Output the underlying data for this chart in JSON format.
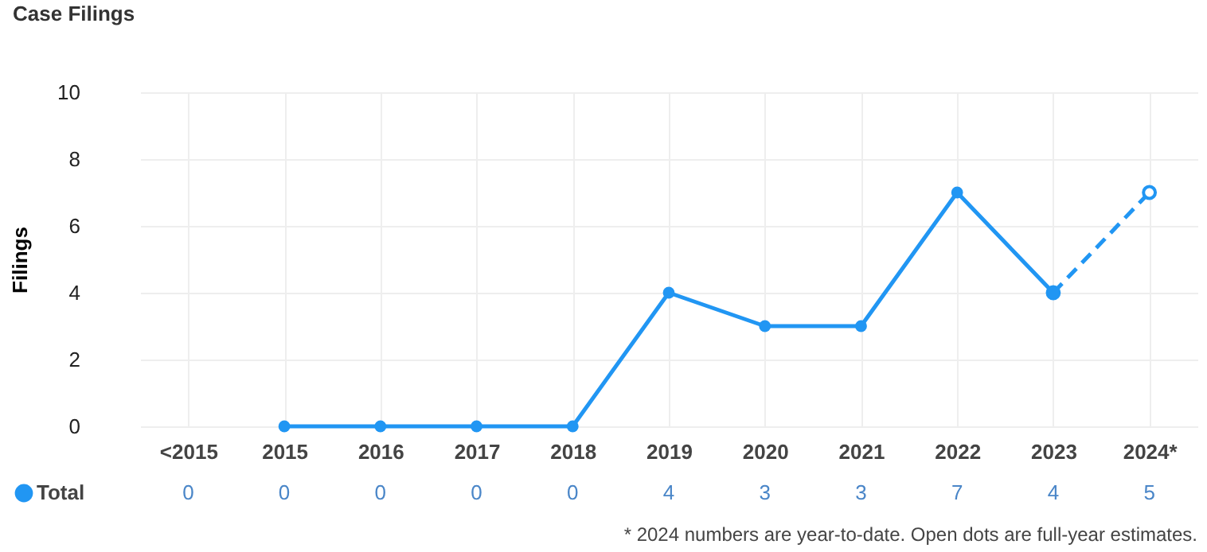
{
  "chart_data": {
    "type": "line",
    "title": "Case Filings",
    "ylabel": "Filings",
    "categories": [
      "<2015",
      "2015",
      "2016",
      "2017",
      "2018",
      "2019",
      "2020",
      "2021",
      "2022",
      "2023",
      "2024*"
    ],
    "series": [
      {
        "name": "Total",
        "color": "#2196f3",
        "values": [
          null,
          0,
          0,
          0,
          0,
          4,
          3,
          3,
          7,
          4,
          null
        ],
        "value_labels": [
          "0",
          "0",
          "0",
          "0",
          "0",
          "4",
          "3",
          "3",
          "7",
          "4",
          "5"
        ],
        "line_style": "solid",
        "marker": "circle"
      },
      {
        "color": "#2196f3",
        "values": [
          null,
          null,
          null,
          null,
          null,
          null,
          null,
          null,
          null,
          4,
          7
        ],
        "line_style": "dashed",
        "marker": "circle"
      }
    ],
    "ylim": [
      0,
      10
    ],
    "yticks": [
      0,
      2,
      4,
      6,
      8,
      10
    ],
    "grid": true,
    "legend": "bottom left",
    "annotations": [
      "* 2024 numbers are year-to-date. Open dots are full-year estimates."
    ]
  }
}
